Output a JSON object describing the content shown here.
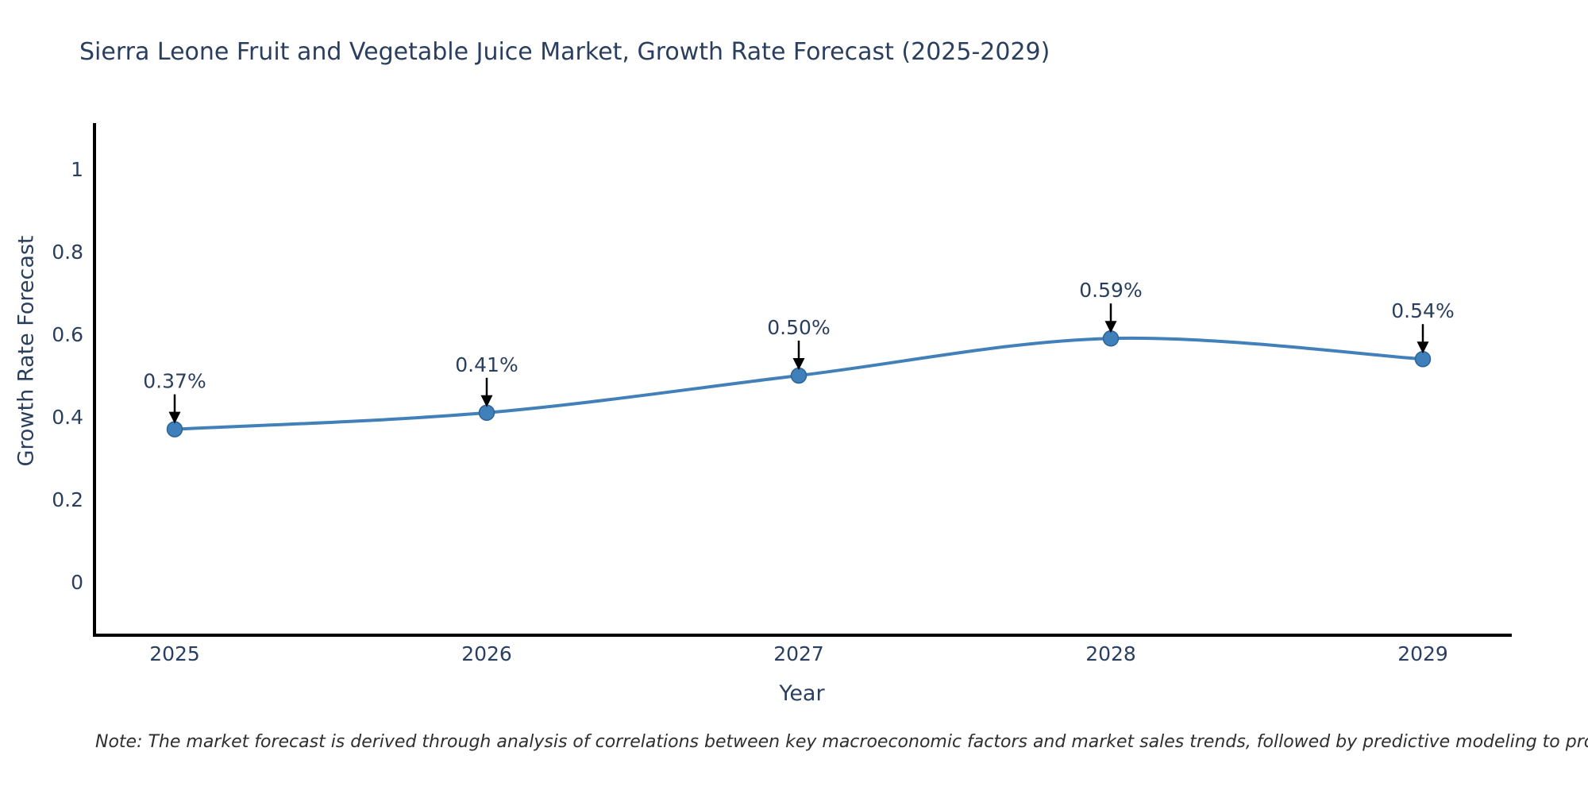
{
  "title": "Sierra Leone Fruit and Vegetable Juice Market, Growth Rate Forecast (2025-2029)",
  "footnote": "Note: The market forecast is derived through analysis of correlations between key macroeconomic factors and market sales trends, followed by predictive modeling to project future sales",
  "chart_data": {
    "type": "line",
    "title": "Sierra Leone Fruit and Vegetable Juice Market, Growth Rate Forecast (2025-2029)",
    "xlabel": "Year",
    "ylabel": "Growth Rate Forecast",
    "x": [
      2025,
      2026,
      2027,
      2028,
      2029
    ],
    "values": [
      0.37,
      0.41,
      0.5,
      0.59,
      0.54
    ],
    "point_labels": [
      "0.37%",
      "0.41%",
      "0.50%",
      "0.59%",
      "0.54%"
    ],
    "x_tick_labels": [
      "2025",
      "2026",
      "2027",
      "2028",
      "2029"
    ],
    "y_ticks": [
      0,
      0.2,
      0.4,
      0.6,
      0.8,
      1
    ],
    "y_tick_labels": [
      "0",
      "0.2",
      "0.4",
      "0.6",
      "0.8",
      "1"
    ],
    "ylim": [
      -0.13,
      1.11
    ],
    "grid": false,
    "legend_position": "none",
    "line_shape": "spline",
    "annotation_style": "label-with-down-arrow",
    "colors": {
      "line": "#4180b8",
      "marker_fill": "#3f7fba",
      "marker_edge": "#2e6399",
      "axis_line": "#000000",
      "arrow": "#000000",
      "text": "#2a3f5f",
      "note_text": "#2e2e2e",
      "background": "#ffffff"
    }
  }
}
